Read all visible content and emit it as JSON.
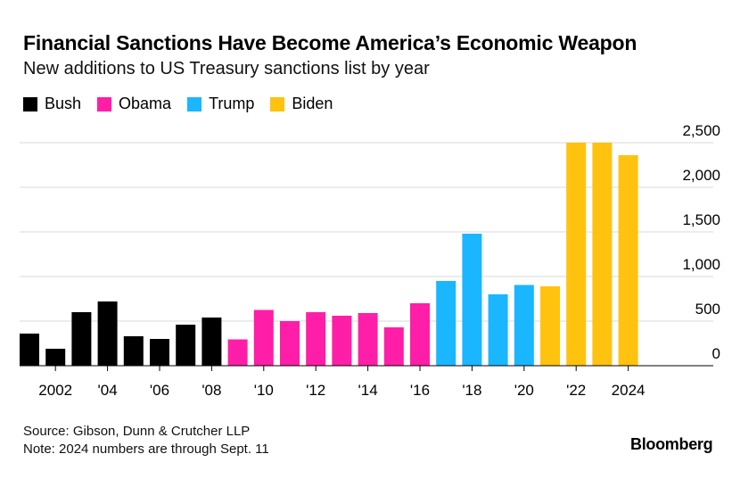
{
  "title": "Financial Sanctions Have Become America’s Economic Weapon",
  "subtitle": "New additions to US Treasury sanctions list by year",
  "legend": [
    {
      "name": "Bush",
      "color": "#000000"
    },
    {
      "name": "Obama",
      "color": "#ff1ea8"
    },
    {
      "name": "Trump",
      "color": "#1ab6ff"
    },
    {
      "name": "Biden",
      "color": "#ffc20e"
    }
  ],
  "footer": {
    "source": "Source: Gibson, Dunn & Crutcher LLP",
    "note": "Note: 2024 numbers are through Sept. 11"
  },
  "brand": "Bloomberg",
  "chart_data": {
    "type": "bar",
    "x": [
      2001,
      2002,
      2003,
      2004,
      2005,
      2006,
      2007,
      2008,
      2009,
      2010,
      2011,
      2012,
      2013,
      2014,
      2015,
      2016,
      2017,
      2018,
      2019,
      2020,
      2021,
      2022,
      2023,
      2024
    ],
    "values": [
      360,
      190,
      600,
      720,
      330,
      300,
      460,
      540,
      295,
      625,
      500,
      600,
      560,
      590,
      430,
      700,
      950,
      1480,
      800,
      905,
      890,
      2500,
      2500,
      2360
    ],
    "series_by_bar": [
      "Bush",
      "Bush",
      "Bush",
      "Bush",
      "Bush",
      "Bush",
      "Bush",
      "Bush",
      "Obama",
      "Obama",
      "Obama",
      "Obama",
      "Obama",
      "Obama",
      "Obama",
      "Obama",
      "Trump",
      "Trump",
      "Trump",
      "Trump",
      "Biden",
      "Biden",
      "Biden",
      "Biden"
    ],
    "xticks": [
      {
        "year": 2002,
        "label": "2002"
      },
      {
        "year": 2004,
        "label": "'04"
      },
      {
        "year": 2006,
        "label": "'06"
      },
      {
        "year": 2008,
        "label": "'08"
      },
      {
        "year": 2010,
        "label": "'10"
      },
      {
        "year": 2012,
        "label": "'12"
      },
      {
        "year": 2014,
        "label": "'14"
      },
      {
        "year": 2016,
        "label": "'16"
      },
      {
        "year": 2018,
        "label": "'18"
      },
      {
        "year": 2020,
        "label": "'20"
      },
      {
        "year": 2022,
        "label": "'22"
      },
      {
        "year": 2024,
        "label": "2024"
      }
    ],
    "yticks": [
      {
        "value": 0,
        "label": "0"
      },
      {
        "value": 500,
        "label": "500"
      },
      {
        "value": 1000,
        "label": "1,000"
      },
      {
        "value": 1500,
        "label": "1,500"
      },
      {
        "value": 2000,
        "label": "2,000"
      },
      {
        "value": 2500,
        "label": "2,500"
      }
    ],
    "ylim": [
      0,
      2500
    ],
    "grid": true,
    "y_axis_side": "right",
    "legend_position": "top-left"
  }
}
